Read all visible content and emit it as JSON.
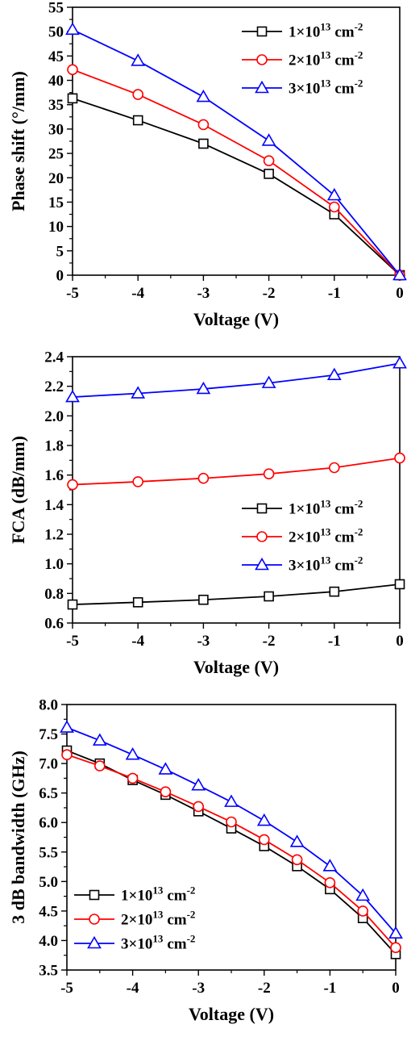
{
  "chart_data": [
    {
      "type": "line",
      "xlabel": "Voltage (V)",
      "ylabel": "Phase shift (°/mm)",
      "xlim": [
        -5,
        0
      ],
      "ylim": [
        0,
        55
      ],
      "x_ticks": [
        "-5",
        "-4",
        "-3",
        "-2",
        "-1",
        "0"
      ],
      "y_ticks": [
        "0",
        "5",
        "10",
        "15",
        "20",
        "25",
        "30",
        "35",
        "40",
        "45",
        "50",
        "55"
      ],
      "legend_position": "top-right",
      "grid": false,
      "x": [
        -5,
        -4,
        -3,
        -2,
        -1,
        0
      ],
      "series": [
        {
          "name": "1×10",
          "name_exp": "13",
          "name_unit": "cm",
          "name_unit_exp": "-2",
          "marker": "square",
          "color": "#000000",
          "values": [
            36.3,
            31.8,
            27.0,
            20.8,
            12.5,
            0
          ]
        },
        {
          "name": "2×10",
          "name_exp": "13",
          "name_unit": "cm",
          "name_unit_exp": "-2",
          "marker": "circle",
          "color": "#ff0000",
          "values": [
            42.2,
            37.1,
            30.9,
            23.5,
            14.0,
            0
          ]
        },
        {
          "name": "3×10",
          "name_exp": "13",
          "name_unit": "cm",
          "name_unit_exp": "-2",
          "marker": "triangle",
          "color": "#0000ff",
          "values": [
            50.4,
            44.0,
            36.6,
            27.6,
            16.4,
            0
          ]
        }
      ]
    },
    {
      "type": "line",
      "xlabel": "Voltage (V)",
      "ylabel": "FCA (dB/mm)",
      "xlim": [
        -5,
        0
      ],
      "ylim": [
        0.6,
        2.4
      ],
      "x_ticks": [
        "-5",
        "-4",
        "-3",
        "-2",
        "-1",
        "0"
      ],
      "y_ticks": [
        "0.6",
        "0.8",
        "1.0",
        "1.2",
        "1.4",
        "1.6",
        "1.8",
        "2.0",
        "2.2",
        "2.4"
      ],
      "legend_position": "center-right",
      "grid": false,
      "x": [
        -5,
        -4,
        -3,
        -2,
        -1,
        0
      ],
      "series": [
        {
          "name": "1×10",
          "name_exp": "13",
          "name_unit": "cm",
          "name_unit_exp": "-2",
          "marker": "square",
          "color": "#000000",
          "values": [
            0.725,
            0.74,
            0.757,
            0.78,
            0.812,
            0.862
          ]
        },
        {
          "name": "2×10",
          "name_exp": "13",
          "name_unit": "cm",
          "name_unit_exp": "-2",
          "marker": "circle",
          "color": "#ff0000",
          "values": [
            1.535,
            1.555,
            1.578,
            1.608,
            1.65,
            1.715
          ]
        },
        {
          "name": "3×10",
          "name_exp": "13",
          "name_unit": "cm",
          "name_unit_exp": "-2",
          "marker": "triangle",
          "color": "#0000ff",
          "values": [
            2.127,
            2.152,
            2.182,
            2.222,
            2.276,
            2.355
          ]
        }
      ]
    },
    {
      "type": "line",
      "xlabel": "Voltage (V)",
      "ylabel": "3 dB bandwidth (GHz)",
      "xlim": [
        -5,
        0
      ],
      "ylim": [
        3.5,
        8.0
      ],
      "x_ticks": [
        "-5",
        "-4",
        "-3",
        "-2",
        "-1",
        "0"
      ],
      "y_ticks": [
        "3.5",
        "4.0",
        "4.5",
        "5.0",
        "5.5",
        "6.0",
        "6.5",
        "7.0",
        "7.5",
        "8.0"
      ],
      "legend_position": "bottom-left",
      "grid": false,
      "x": [
        -5,
        -4.5,
        -4,
        -3.5,
        -3,
        -2.5,
        -2,
        -1.5,
        -1,
        -0.5,
        0
      ],
      "series": [
        {
          "name": "1×10",
          "name_exp": "13",
          "name_unit": "cm",
          "name_unit_exp": "-2",
          "marker": "square",
          "color": "#000000",
          "values": [
            7.22,
            7.0,
            6.72,
            6.47,
            6.19,
            5.9,
            5.6,
            5.26,
            4.87,
            4.38,
            3.77
          ]
        },
        {
          "name": "2×10",
          "name_exp": "13",
          "name_unit": "cm",
          "name_unit_exp": "-2",
          "marker": "circle",
          "color": "#ff0000",
          "values": [
            7.15,
            6.96,
            6.75,
            6.52,
            6.27,
            6.01,
            5.71,
            5.37,
            4.98,
            4.5,
            3.88
          ]
        },
        {
          "name": "3×10",
          "name_exp": "13",
          "name_unit": "cm",
          "name_unit_exp": "-2",
          "marker": "triangle",
          "color": "#0000ff",
          "values": [
            7.61,
            7.39,
            7.15,
            6.9,
            6.63,
            6.35,
            6.03,
            5.67,
            5.26,
            4.76,
            4.12
          ]
        }
      ]
    }
  ]
}
